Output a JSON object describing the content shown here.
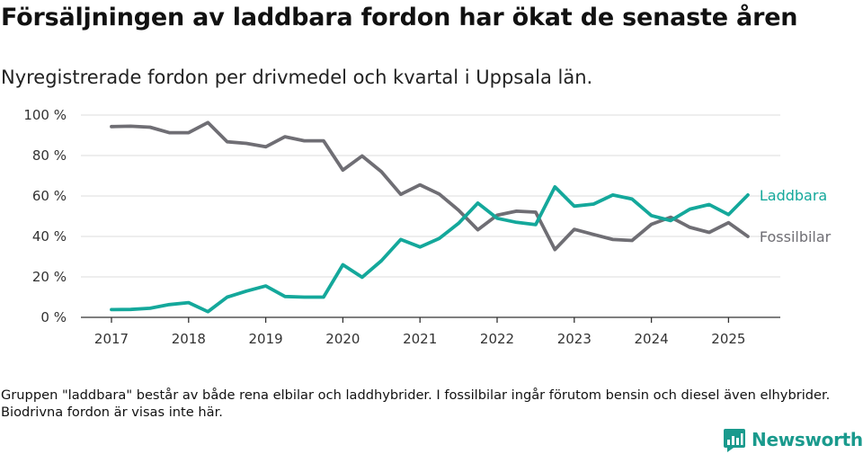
{
  "title": "Försäljningen av laddbara fordon har ökat de senaste åren",
  "subtitle": "Nyregistrerade fordon per drivmedel och kvartal i Uppsala län.",
  "note": "Gruppen \"laddbara\" består av både rena elbilar och laddhybrider. I fossilbilar ingår förutom bensin och diesel även elhybrider. Biodrivna fordon är visas inte här.",
  "brand": {
    "name": "Newsworthy",
    "icon": "bar-chart-logo-icon",
    "color": "#1a9a8d"
  },
  "chart_data": {
    "type": "line",
    "x_start": "2017 Q1",
    "x_end": "2025 Q2",
    "x_ticks": [
      "2017",
      "2018",
      "2019",
      "2020",
      "2021",
      "2022",
      "2023",
      "2024",
      "2025"
    ],
    "y_ticks": [
      "0 %",
      "20 %",
      "40 %",
      "60 %",
      "80 %",
      "100 %"
    ],
    "ylim": [
      0,
      100
    ],
    "grid": true,
    "series": [
      {
        "name": "Fossilbilar",
        "color": "#6f6e74",
        "values": [
          94.3,
          94.5,
          94.0,
          91.3,
          91.3,
          96.3,
          86.8,
          86.0,
          84.3,
          89.3,
          87.3,
          87.3,
          72.8,
          79.8,
          72.0,
          60.8,
          65.5,
          61.0,
          53.0,
          43.3,
          50.5,
          52.5,
          52.0,
          33.5,
          43.5,
          41.0,
          38.5,
          38.0,
          46.0,
          49.5,
          44.5,
          42.0,
          46.8,
          40.0
        ]
      },
      {
        "name": "Laddbara",
        "color": "#14a89b",
        "values": [
          3.8,
          3.9,
          4.5,
          6.3,
          7.3,
          2.8,
          10.0,
          13.0,
          15.5,
          10.3,
          10.0,
          10.0,
          26.0,
          19.8,
          28.0,
          38.5,
          34.8,
          39.0,
          46.5,
          56.5,
          49.0,
          47.0,
          45.8,
          64.5,
          55.0,
          56.0,
          60.5,
          58.5,
          50.3,
          47.8,
          53.5,
          55.8,
          50.8,
          60.5
        ]
      }
    ]
  }
}
